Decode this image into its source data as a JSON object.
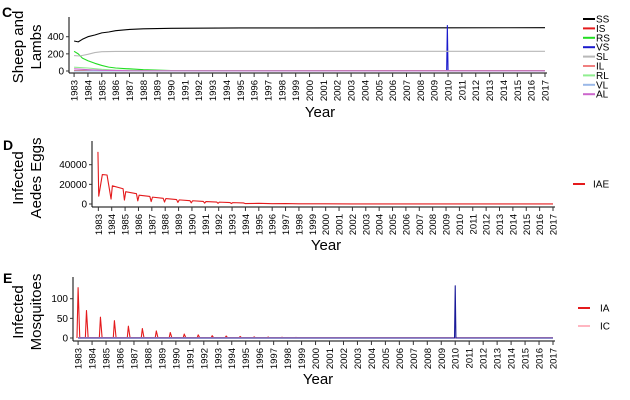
{
  "years": [
    "1983",
    "1984",
    "1985",
    "1986",
    "1987",
    "1988",
    "1989",
    "1990",
    "1991",
    "1992",
    "1993",
    "1994",
    "1995",
    "1996",
    "1997",
    "1998",
    "1999",
    "2000",
    "2001",
    "2002",
    "2003",
    "2004",
    "2005",
    "2006",
    "2007",
    "2008",
    "2009",
    "2010",
    "2011",
    "2012",
    "2013",
    "2014",
    "2015",
    "2016",
    "2017"
  ],
  "chart_data": [
    {
      "panel": "C",
      "type": "line",
      "xlabel": "Year",
      "ylabel_lines": [
        "Sheep and",
        "Lambs"
      ],
      "ylim": [
        0,
        560
      ],
      "yticks": [
        0,
        200,
        400
      ],
      "xlim": [
        1982.85,
        2017.0
      ],
      "legend_placement": "right",
      "series": [
        {
          "name": "SS",
          "color": "#000000",
          "points": [
            [
              1983.0,
              350
            ],
            [
              1983.3,
              340
            ],
            [
              1983.6,
              370
            ],
            [
              1984.0,
              400
            ],
            [
              1984.5,
              420
            ],
            [
              1985.0,
              445
            ],
            [
              1985.5,
              455
            ],
            [
              1986.0,
              470
            ],
            [
              1987.0,
              485
            ],
            [
              1988.0,
              492
            ],
            [
              1990.0,
              498
            ],
            [
              1995.0,
              502
            ],
            [
              2000.0,
              503
            ],
            [
              2010.0,
              504
            ],
            [
              2017.0,
              505
            ]
          ]
        },
        {
          "name": "IS",
          "color": "#e41a1c",
          "points": [
            [
              1983.0,
              5
            ],
            [
              2017.0,
              5
            ]
          ]
        },
        {
          "name": "RS",
          "color": "#22dd22",
          "points": [
            [
              1983.0,
              230
            ],
            [
              1983.3,
              200
            ],
            [
              1983.6,
              150
            ],
            [
              1984.0,
              120
            ],
            [
              1984.5,
              90
            ],
            [
              1985.0,
              65
            ],
            [
              1985.5,
              45
            ],
            [
              1986.0,
              35
            ],
            [
              1987.0,
              25
            ],
            [
              1988.0,
              15
            ],
            [
              1990.0,
              6
            ],
            [
              1995.0,
              2
            ],
            [
              2000.0,
              1
            ],
            [
              2017.0,
              1
            ]
          ]
        },
        {
          "name": "VS",
          "color": "#1a1acc",
          "points": [
            [
              1983.0,
              0
            ],
            [
              2009.9,
              0
            ],
            [
              2009.95,
              530
            ],
            [
              2010.0,
              0
            ],
            [
              2017.0,
              0
            ]
          ]
        },
        {
          "name": "SL",
          "color": "#b8b8b8",
          "points": [
            [
              1983.0,
              180
            ],
            [
              1983.4,
              175
            ],
            [
              1984.0,
              195
            ],
            [
              1984.5,
              215
            ],
            [
              1985.0,
              225
            ],
            [
              1986.0,
              228
            ],
            [
              1990.0,
              230
            ],
            [
              2017.0,
              230
            ]
          ]
        },
        {
          "name": "IL",
          "color": "#f08080",
          "points": [
            [
              1983.0,
              3
            ],
            [
              2017.0,
              3
            ]
          ]
        },
        {
          "name": "RL",
          "color": "#90ee90",
          "points": [
            [
              1983.0,
              45
            ],
            [
              1984.0,
              35
            ],
            [
              1985.0,
              20
            ],
            [
              1986.0,
              10
            ],
            [
              1988.0,
              4
            ],
            [
              2017.0,
              2
            ]
          ]
        },
        {
          "name": "VL",
          "color": "#9ab8e8",
          "points": [
            [
              1983.0,
              0
            ],
            [
              2017.0,
              0
            ]
          ]
        },
        {
          "name": "AL",
          "color": "#cc66cc",
          "points": [
            [
              1983.0,
              25
            ],
            [
              1984.0,
              15
            ],
            [
              1985.0,
              8
            ],
            [
              1987.0,
              3
            ],
            [
              2017.0,
              2
            ]
          ]
        }
      ]
    },
    {
      "panel": "D",
      "type": "line",
      "xlabel": "Year",
      "ylabel_lines": [
        "Infected",
        "Aedes Eggs"
      ],
      "ylim": [
        0,
        58000
      ],
      "yticks": [
        0,
        20000,
        40000
      ],
      "xlim": [
        1982.75,
        2017.0
      ],
      "legend_placement": "right",
      "series": [
        {
          "name": "IAE",
          "color": "#e41a1c",
          "points": [
            [
              1982.97,
              53000
            ],
            [
              1983.03,
              8000
            ],
            [
              1983.3,
              30000
            ],
            [
              1983.65,
              29500
            ],
            [
              1983.95,
              5000
            ],
            [
              1984.05,
              18500
            ],
            [
              1984.85,
              15500
            ],
            [
              1984.95,
              4000
            ],
            [
              1985.05,
              12500
            ],
            [
              1985.85,
              10500
            ],
            [
              1985.95,
              3200
            ],
            [
              1986.05,
              9000
            ],
            [
              1986.85,
              7700
            ],
            [
              1986.95,
              2500
            ],
            [
              1987.05,
              7000
            ],
            [
              1987.85,
              5800
            ],
            [
              1987.95,
              2000
            ],
            [
              1988.05,
              5500
            ],
            [
              1988.85,
              4500
            ],
            [
              1988.95,
              1600
            ],
            [
              1989.05,
              4200
            ],
            [
              1989.85,
              3400
            ],
            [
              1989.95,
              1200
            ],
            [
              1990.05,
              3300
            ],
            [
              1990.85,
              2600
            ],
            [
              1990.95,
              900
            ],
            [
              1991.05,
              2500
            ],
            [
              1991.85,
              2000
            ],
            [
              1991.95,
              700
            ],
            [
              1992.05,
              1900
            ],
            [
              1992.85,
              1500
            ],
            [
              1992.95,
              500
            ],
            [
              1993.05,
              1400
            ],
            [
              1993.85,
              1100
            ],
            [
              1994.0,
              400
            ],
            [
              1995.0,
              700
            ],
            [
              1996.0,
              300
            ],
            [
              1997.0,
              400
            ],
            [
              1998.0,
              150
            ],
            [
              2000.0,
              200
            ],
            [
              2002.0,
              100
            ],
            [
              2005.0,
              50
            ],
            [
              2017.0,
              20
            ]
          ]
        }
      ]
    },
    {
      "panel": "E",
      "type": "line",
      "xlabel": "Year",
      "ylabel_lines": [
        "Infected",
        "Mosquitoes"
      ],
      "ylim": [
        0,
        140
      ],
      "yticks": [
        0,
        50,
        100
      ],
      "xlim": [
        1982.85,
        2017.0
      ],
      "legend_placement": "right",
      "series": [
        {
          "name": "IA",
          "color": "#e41a1c",
          "peaks": [
            [
              1983.0,
              128
            ],
            [
              1983.6,
              70
            ],
            [
              1984.6,
              53
            ],
            [
              1985.6,
              44
            ],
            [
              1986.6,
              30
            ],
            [
              1987.6,
              24
            ],
            [
              1988.6,
              18
            ],
            [
              1989.6,
              14
            ],
            [
              1990.6,
              10
            ],
            [
              1991.6,
              8
            ],
            [
              1992.6,
              6
            ],
            [
              1993.6,
              5
            ],
            [
              1994.6,
              4
            ],
            [
              1995.6,
              3
            ],
            [
              1996.6,
              2.5
            ],
            [
              1997.6,
              2
            ],
            [
              1998.6,
              1.5
            ],
            [
              1999.6,
              1
            ],
            [
              2000.6,
              1
            ]
          ],
          "end": 2017.0
        },
        {
          "name": "IC",
          "color": "#ffb6c1",
          "points": [
            [
              1983.0,
              1
            ],
            [
              2017.0,
              1
            ]
          ]
        },
        {
          "name": "",
          "color": "#1a1a99",
          "points": [
            [
              1983.0,
              0
            ],
            [
              2009.95,
              0
            ],
            [
              2010.0,
              133
            ],
            [
              2010.05,
              0
            ],
            [
              2017.0,
              0
            ]
          ]
        }
      ]
    }
  ],
  "panel_letters": [
    "C",
    "D",
    "E"
  ],
  "legends": [
    [
      "SS",
      "IS",
      "RS",
      "VS",
      "SL",
      "IL",
      "RL",
      "VL",
      "AL"
    ],
    [
      "IAE"
    ],
    [
      "IA",
      "IC"
    ]
  ]
}
